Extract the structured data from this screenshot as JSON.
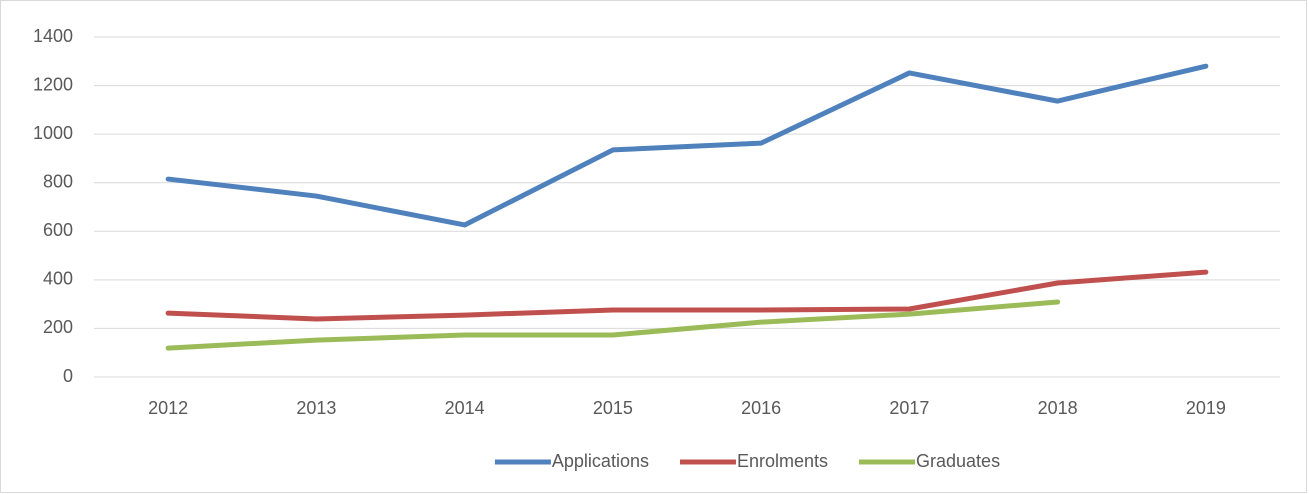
{
  "chart_data": {
    "type": "line",
    "categories": [
      "2012",
      "2013",
      "2014",
      "2015",
      "2016",
      "2017",
      "2018",
      "2019"
    ],
    "series": [
      {
        "name": "Applications",
        "color": "#4f81bd",
        "values": [
          815,
          745,
          626,
          935,
          963,
          1252,
          1136,
          1280
        ]
      },
      {
        "name": "Enrolments",
        "color": "#c0504d",
        "values": [
          263,
          239,
          255,
          276,
          276,
          280,
          387,
          432
        ]
      },
      {
        "name": "Graduates",
        "color": "#9bbb59",
        "values": [
          119,
          152,
          173,
          173,
          226,
          259,
          309,
          null
        ]
      }
    ],
    "ylim": [
      0,
      1400
    ],
    "yticks": [
      0,
      200,
      400,
      600,
      800,
      1000,
      1200,
      1400
    ],
    "grid": true,
    "legend": "bottom"
  }
}
